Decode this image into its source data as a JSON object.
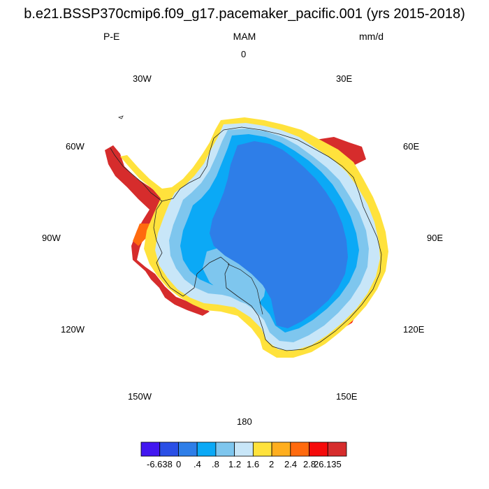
{
  "title": "b.e21.BSSP370cmip6.f09_g17.pacemaker_pacific.001 (yrs 2015-2018)",
  "header": {
    "left": "P-E",
    "center": "MAM",
    "right": "mm/d"
  },
  "longitude_labels": {
    "lon_0": "0",
    "lon_30e": "30E",
    "lon_60e": "60E",
    "lon_90e": "90E",
    "lon_120e": "120E",
    "lon_150e": "150E",
    "lon_180": "180",
    "lon_150w": "150W",
    "lon_120w": "120W",
    "lon_90w": "90W",
    "lon_60w": "60W",
    "lon_30w": "30W"
  },
  "colorbar": {
    "labels": [
      "-6.638",
      "0",
      ".4",
      ".8",
      "1.2",
      "1.6",
      "2",
      "2.4",
      "2.8",
      "26.135"
    ],
    "colors": [
      "#4217f0",
      "#2a4fe6",
      "#2e7ee8",
      "#0ba9f6",
      "#7ec6ee",
      "#c8e6f8",
      "#ffe23c",
      "#ffae1e",
      "#ff6a0e",
      "#f50a0a",
      "#d62c2c"
    ]
  },
  "map_colors": {
    "interior": "#2e7ee8",
    "inner_ring": "#0ba9f6",
    "middle_ring": "#7ec6ee",
    "outer_ring": "#c8e6f8",
    "coast_yellow": "#ffe23c",
    "coast_orange": "#ffae1e",
    "coast_red": "#f50a0a",
    "coast_darkred": "#d62c2c"
  }
}
